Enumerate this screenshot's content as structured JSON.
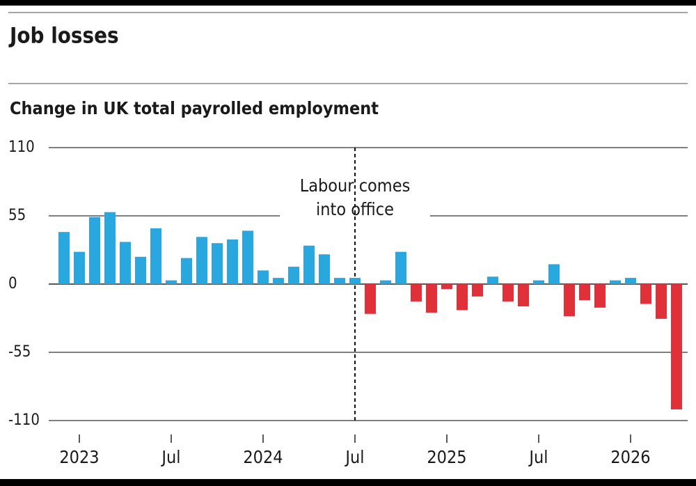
{
  "chart_data": {
    "type": "bar",
    "title": "Job losses",
    "subtitle": "Change in UK total payrolled employment",
    "categories": [
      null,
      "2023",
      null,
      null,
      null,
      null,
      null,
      "Jul",
      null,
      null,
      null,
      null,
      null,
      "2024",
      null,
      null,
      null,
      null,
      null,
      "Jul",
      null,
      null,
      null,
      null,
      null,
      "2025",
      null,
      null,
      null,
      null,
      null,
      "Jul",
      null,
      null,
      null,
      null,
      null,
      "2026",
      null,
      null,
      null
    ],
    "values": [
      42,
      26,
      54,
      58,
      34,
      22,
      45,
      3,
      21,
      38,
      33,
      36,
      43,
      11,
      5,
      14,
      31,
      24,
      5,
      5,
      -24,
      3,
      26,
      -14,
      -23,
      -4,
      -21,
      -10,
      6,
      -14,
      -18,
      3,
      16,
      -26,
      -13,
      -19,
      3,
      5,
      -16,
      -28,
      -101
    ],
    "color_positive": "#29a8e0",
    "color_negative": "#e0303a",
    "ylim": [
      -120,
      110
    ],
    "yticks": [
      -110,
      -55,
      0,
      55,
      110
    ],
    "grid": true,
    "annotation": {
      "lines": [
        "Labour comes",
        "into office"
      ],
      "category_index": 19
    }
  }
}
